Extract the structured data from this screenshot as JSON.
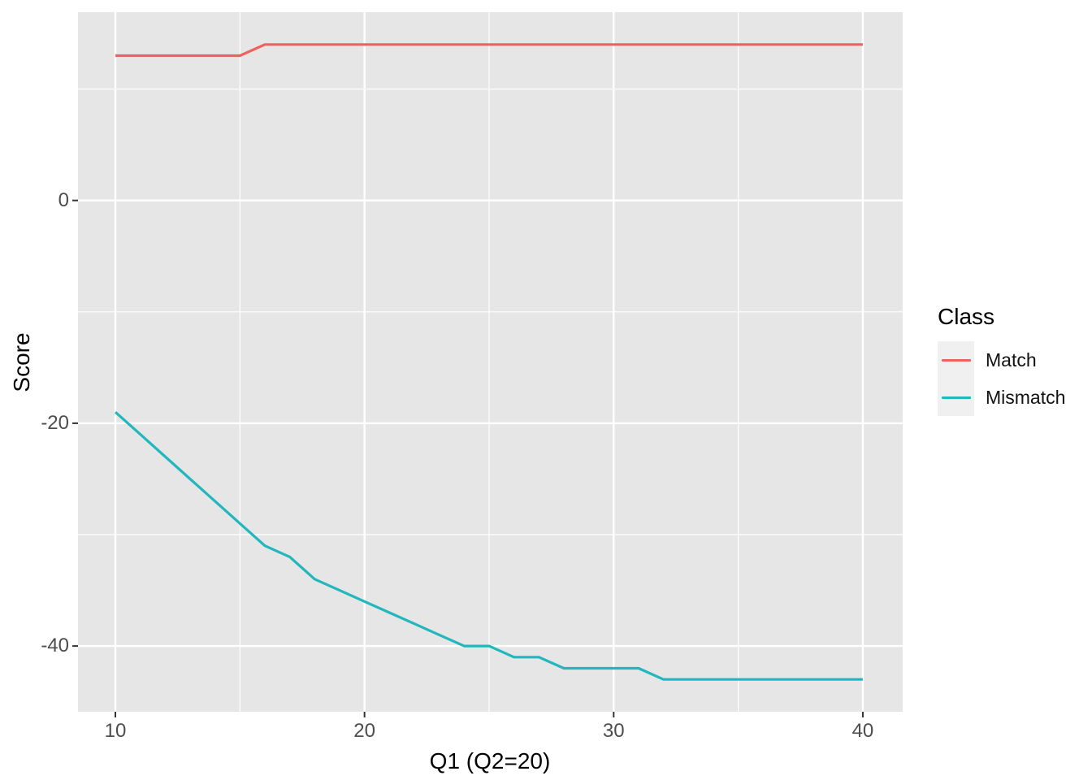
{
  "chart_data": {
    "type": "line",
    "title": "",
    "xlabel": "Q1 (Q2=20)",
    "ylabel": "Score",
    "legend_title": "Class",
    "legend_position": "right",
    "grid": "on",
    "xlim": [
      8.5,
      41.6
    ],
    "ylim": [
      -45.9,
      16.9
    ],
    "x_ticks": [
      10,
      20,
      30,
      40
    ],
    "y_ticks": [
      0,
      -20,
      -40
    ],
    "x_minor_ticks": [
      15,
      25,
      35
    ],
    "y_minor_ticks": [
      10,
      -10,
      -30
    ],
    "x": [
      10,
      11,
      12,
      13,
      14,
      15,
      16,
      17,
      18,
      19,
      20,
      21,
      22,
      23,
      24,
      25,
      26,
      27,
      28,
      29,
      30,
      31,
      32,
      33,
      34,
      35,
      36,
      37,
      38,
      39,
      40
    ],
    "series": [
      {
        "name": "Match",
        "color": "#F0605C",
        "values": [
          13,
          13,
          13,
          13,
          13,
          13,
          14,
          14,
          14,
          14,
          14,
          14,
          14,
          14,
          14,
          14,
          14,
          14,
          14,
          14,
          14,
          14,
          14,
          14,
          14,
          14,
          14,
          14,
          14,
          14,
          14
        ]
      },
      {
        "name": "Mismatch",
        "color": "#21B7BD",
        "values": [
          -19,
          -21,
          -23,
          -25,
          -27,
          -29,
          -31,
          -32,
          -34,
          -35,
          -36,
          -37,
          -38,
          -39,
          -40,
          -40,
          -41,
          -41,
          -42,
          -42,
          -42,
          -42,
          -43,
          -43,
          -43,
          -43,
          -43,
          -43,
          -43,
          -43,
          -43
        ]
      }
    ]
  },
  "colors": {
    "panel_bg": "#E6E6E6",
    "grid_major": "#FFFFFF",
    "grid_minor": "#FFFFFF",
    "tick_mark": "#333333",
    "tick_text": "#4D4D4D",
    "axis_title_text": "#000000",
    "legend_key_bg": "#F0F0F0",
    "match_line": "#F0605C",
    "mismatch_line": "#21B7BD"
  }
}
